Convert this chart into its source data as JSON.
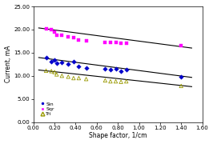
{
  "title": "",
  "xlabel": "Shape factor, 1/cm",
  "ylabel": "Current, mA",
  "xlim": [
    0.0,
    1.6
  ],
  "ylim": [
    0.0,
    25.0
  ],
  "xticks": [
    0.0,
    0.2,
    0.4,
    0.6,
    0.8,
    1.0,
    1.2,
    1.4,
    1.6
  ],
  "yticks": [
    0.0,
    5.0,
    10.0,
    15.0,
    20.0,
    25.0
  ],
  "sin_x": [
    0.12,
    0.17,
    0.2,
    0.22,
    0.27,
    0.33,
    0.38,
    0.43,
    0.5,
    0.68,
    0.73,
    0.78,
    0.83,
    0.88,
    1.4
  ],
  "sin_y": [
    13.9,
    13.0,
    13.5,
    12.8,
    12.9,
    12.5,
    13.0,
    12.0,
    11.7,
    11.5,
    11.3,
    11.5,
    11.0,
    11.3,
    9.8
  ],
  "sqr_x": [
    0.12,
    0.17,
    0.2,
    0.22,
    0.27,
    0.33,
    0.38,
    0.43,
    0.5,
    0.68,
    0.73,
    0.78,
    0.83,
    0.88,
    1.4
  ],
  "sqr_y": [
    20.1,
    20.0,
    19.5,
    18.8,
    18.8,
    18.5,
    18.3,
    17.8,
    17.5,
    17.3,
    17.2,
    17.2,
    17.0,
    17.0,
    16.5
  ],
  "tri_x": [
    0.12,
    0.17,
    0.2,
    0.22,
    0.27,
    0.33,
    0.38,
    0.43,
    0.5,
    0.68,
    0.73,
    0.78,
    0.83,
    0.88,
    1.4
  ],
  "tri_y": [
    11.1,
    11.0,
    10.8,
    10.3,
    10.0,
    9.8,
    9.5,
    9.5,
    9.3,
    9.0,
    8.8,
    8.8,
    8.7,
    8.8,
    7.8
  ],
  "sin_color": "#0000cc",
  "sqr_color": "#ff00ff",
  "tri_color": "#999900",
  "line_color": "#000000",
  "sin_trendline": [
    0.05,
    1.5,
    13.95,
    9.65
  ],
  "sqr_trendline": [
    0.05,
    1.5,
    20.35,
    16.0
  ],
  "tri_trendline": [
    0.05,
    1.5,
    11.25,
    7.65
  ],
  "legend_labels": [
    "Sin",
    "Sqr",
    "Tri"
  ],
  "bg_color": "#ffffff"
}
